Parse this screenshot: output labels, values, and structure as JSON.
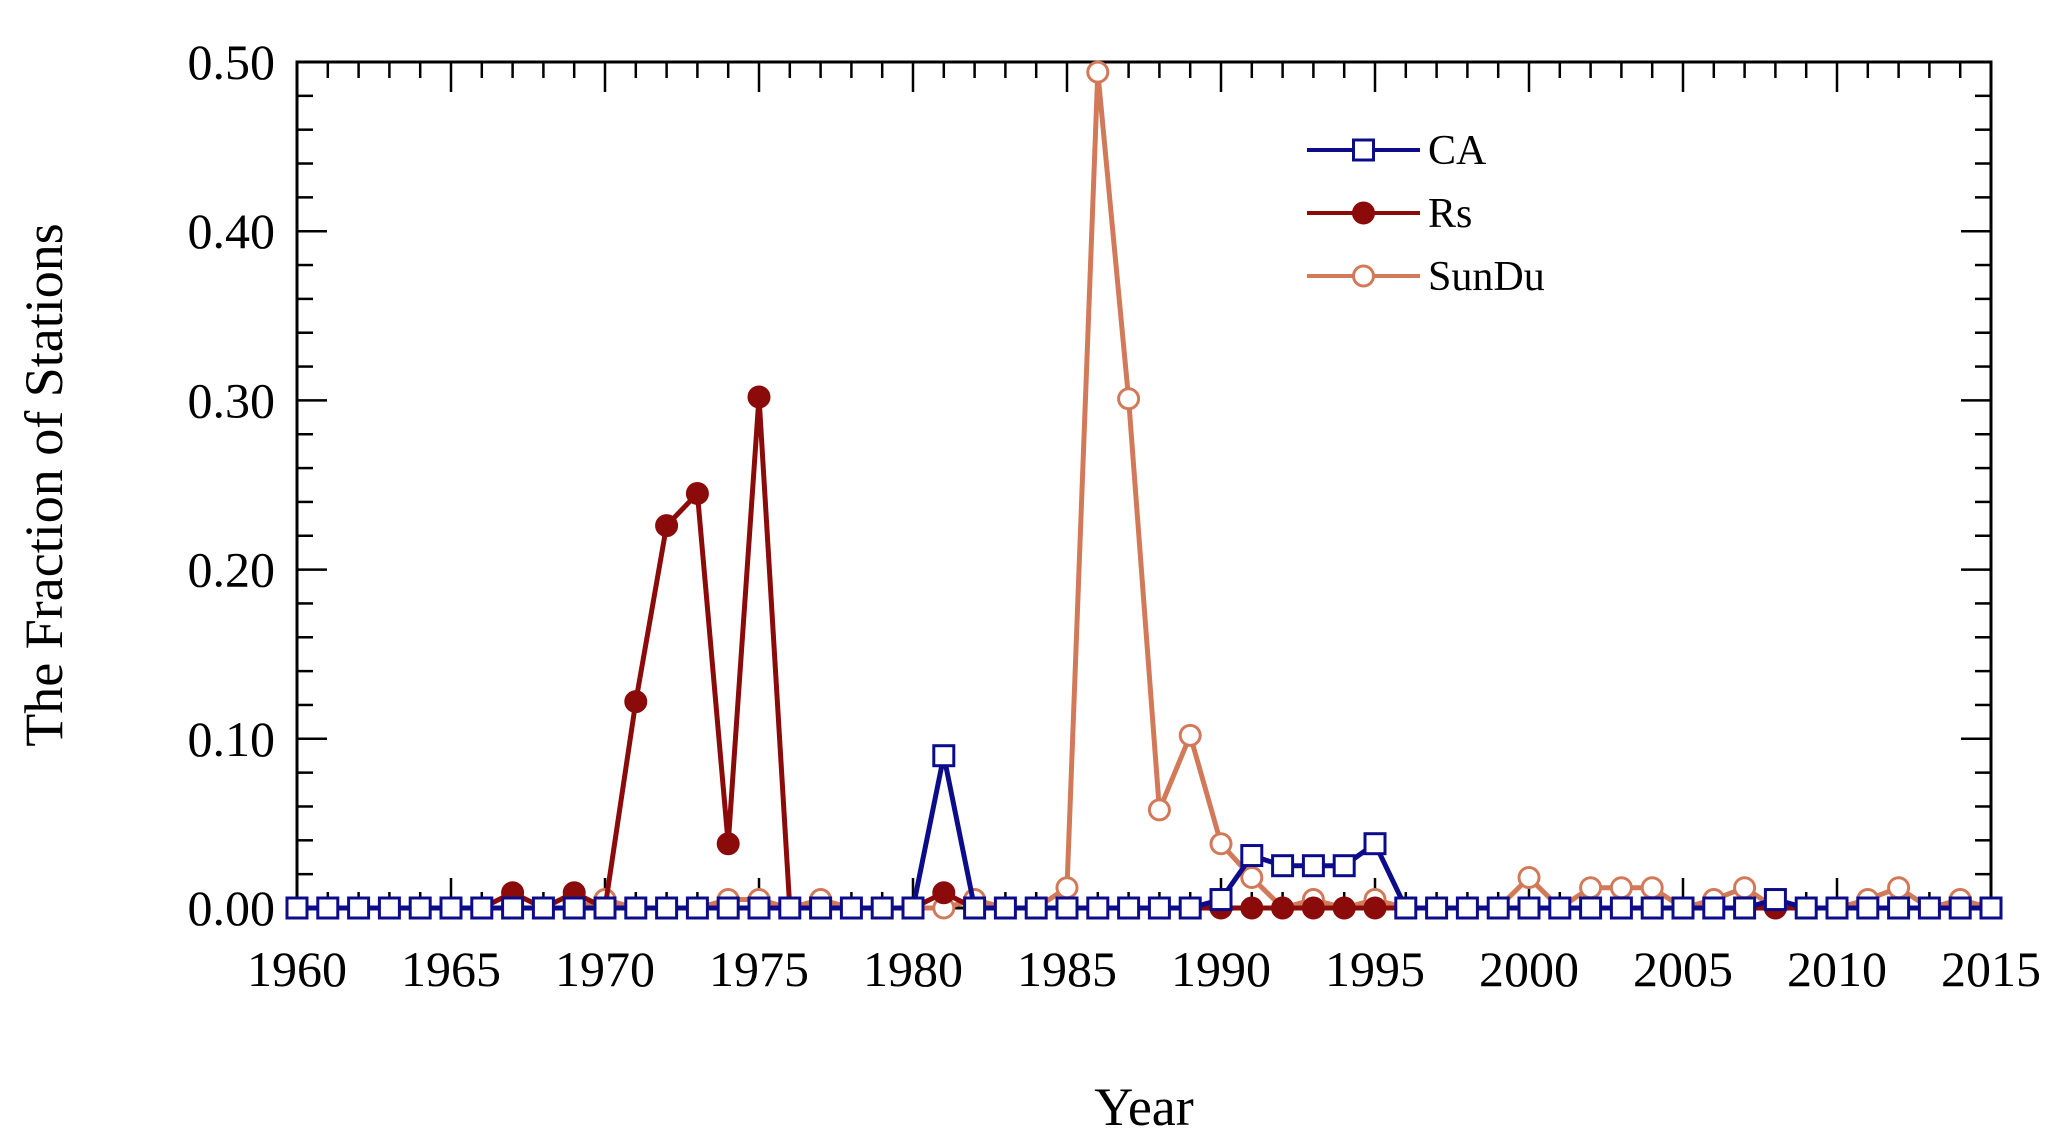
{
  "chart_data": {
    "type": "line",
    "title": "",
    "xlabel": "Year",
    "ylabel": "The Fraction of Stations",
    "xlim": [
      1960,
      2015
    ],
    "ylim": [
      0,
      0.5
    ],
    "xticks": [
      1960,
      1965,
      1970,
      1975,
      1980,
      1985,
      1990,
      1995,
      2000,
      2005,
      2010,
      2015
    ],
    "xtick_labels": [
      "1960",
      "1965",
      "1970",
      "1975",
      "1980",
      "1985",
      "1990",
      "1995",
      "2000",
      "2005",
      "2010",
      "2015"
    ],
    "yticks": [
      0,
      0.1,
      0.2,
      0.3,
      0.4,
      0.5
    ],
    "ytick_labels": [
      "0.00",
      "0.10",
      "0.20",
      "0.30",
      "0.40",
      "0.50"
    ],
    "grid": false,
    "legend_position": "top-right",
    "x": [
      1960,
      1961,
      1962,
      1963,
      1964,
      1965,
      1966,
      1967,
      1968,
      1969,
      1970,
      1971,
      1972,
      1973,
      1974,
      1975,
      1976,
      1977,
      1978,
      1979,
      1980,
      1981,
      1982,
      1983,
      1984,
      1985,
      1986,
      1987,
      1988,
      1989,
      1990,
      1991,
      1992,
      1993,
      1994,
      1995,
      1996,
      1997,
      1998,
      1999,
      2000,
      2001,
      2002,
      2003,
      2004,
      2005,
      2006,
      2007,
      2008,
      2009,
      2010,
      2011,
      2012,
      2013,
      2014,
      2015
    ],
    "series": [
      {
        "name": "SunDu",
        "color": "#d2795a",
        "marker": "open-circle",
        "values": [
          0,
          0,
          0,
          0,
          0,
          0,
          0,
          0,
          0,
          0,
          0.005,
          0,
          0,
          0,
          0.005,
          0.005,
          0,
          0.005,
          0,
          0,
          0,
          0,
          0.005,
          0,
          0,
          0.012,
          0.494,
          0.301,
          0.058,
          0.102,
          0.038,
          0.018,
          0,
          0.005,
          0,
          0.005,
          0,
          0,
          0,
          0,
          0.018,
          0,
          0.012,
          0.012,
          0.012,
          0,
          0.005,
          0.012,
          0,
          0,
          0,
          0.005,
          0.012,
          0,
          0.005,
          0
        ]
      },
      {
        "name": "Rs",
        "color": "#8b0a0a",
        "marker": "filled-circle",
        "values": [
          0,
          0,
          0,
          0,
          0,
          0,
          0,
          0.009,
          0,
          0.009,
          0,
          0.122,
          0.226,
          0.245,
          0.038,
          0.302,
          0,
          0,
          0,
          0,
          0,
          0.009,
          0,
          0,
          0,
          0,
          0,
          0,
          0,
          0,
          0,
          0,
          0,
          0,
          0,
          0,
          0,
          0,
          0,
          0,
          0,
          0,
          0,
          0,
          0,
          0,
          0,
          0,
          0,
          0,
          0,
          0,
          0,
          0,
          0,
          0
        ]
      },
      {
        "name": "CA",
        "color": "#0c0c8a",
        "marker": "open-square",
        "values": [
          0,
          0,
          0,
          0,
          0,
          0,
          0,
          0,
          0,
          0,
          0,
          0,
          0,
          0,
          0,
          0,
          0,
          0,
          0,
          0,
          0,
          0.09,
          0,
          0,
          0,
          0,
          0,
          0,
          0,
          0,
          0.005,
          0.031,
          0.025,
          0.025,
          0.025,
          0.038,
          0,
          0,
          0,
          0,
          0,
          0,
          0,
          0,
          0,
          0,
          0,
          0,
          0.005,
          0,
          0,
          0,
          0,
          0,
          0,
          0
        ]
      }
    ],
    "legend_order": [
      "CA",
      "Rs",
      "SunDu"
    ]
  }
}
